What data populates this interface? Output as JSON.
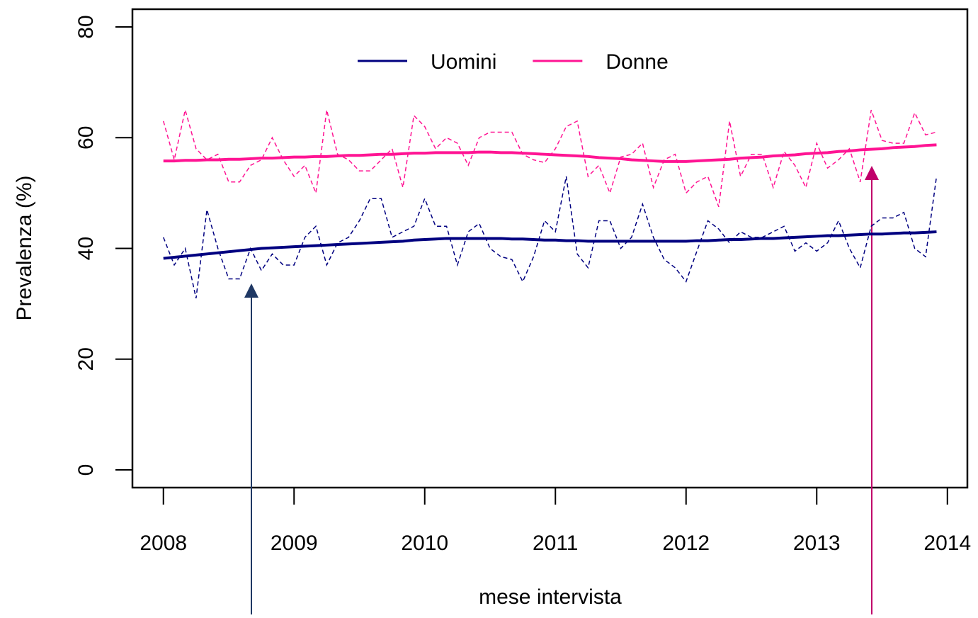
{
  "chart_data": {
    "type": "line",
    "xlabel": "mese intervista",
    "ylabel": "Prevalenza (%)",
    "x": [
      2008,
      2008.083,
      2008.167,
      2008.25,
      2008.333,
      2008.417,
      2008.5,
      2008.583,
      2008.667,
      2008.75,
      2008.833,
      2008.917,
      2009,
      2009.083,
      2009.167,
      2009.25,
      2009.333,
      2009.417,
      2009.5,
      2009.583,
      2009.667,
      2009.75,
      2009.833,
      2009.917,
      2010,
      2010.083,
      2010.167,
      2010.25,
      2010.333,
      2010.417,
      2010.5,
      2010.583,
      2010.667,
      2010.75,
      2010.833,
      2010.917,
      2011,
      2011.083,
      2011.167,
      2011.25,
      2011.333,
      2011.417,
      2011.5,
      2011.583,
      2011.667,
      2011.75,
      2011.833,
      2011.917,
      2012,
      2012.083,
      2012.167,
      2012.25,
      2012.333,
      2012.417,
      2012.5,
      2012.583,
      2012.667,
      2012.75,
      2012.833,
      2012.917,
      2013,
      2013.083,
      2013.167,
      2013.25,
      2013.333,
      2013.417,
      2013.5,
      2013.583,
      2013.667,
      2013.75,
      2013.833,
      2013.917
    ],
    "series": [
      {
        "name": "Uomini",
        "color": "#000080",
        "values": [
          38.2,
          38.4,
          38.6,
          38.8,
          39.0,
          39.2,
          39.4,
          39.6,
          39.8,
          40.0,
          40.1,
          40.2,
          40.3,
          40.4,
          40.5,
          40.6,
          40.7,
          40.8,
          40.9,
          41.0,
          41.1,
          41.2,
          41.3,
          41.5,
          41.6,
          41.7,
          41.8,
          41.8,
          41.8,
          41.8,
          41.8,
          41.8,
          41.7,
          41.7,
          41.6,
          41.5,
          41.5,
          41.4,
          41.4,
          41.3,
          41.3,
          41.3,
          41.3,
          41.3,
          41.3,
          41.3,
          41.3,
          41.3,
          41.3,
          41.4,
          41.4,
          41.5,
          41.6,
          41.6,
          41.7,
          41.8,
          41.8,
          41.9,
          42.0,
          42.1,
          42.2,
          42.3,
          42.3,
          42.4,
          42.5,
          42.6,
          42.6,
          42.7,
          42.8,
          42.8,
          42.9,
          43.0
        ],
        "monthly": [
          42,
          37,
          40,
          31,
          47,
          40,
          34.5,
          34.5,
          40,
          36,
          39,
          37,
          37,
          42,
          44,
          37,
          41,
          42,
          45,
          49,
          49,
          42,
          43,
          44,
          49,
          44,
          44,
          37,
          43,
          44.5,
          40,
          38.5,
          38,
          34,
          38.5,
          45,
          43,
          53,
          39,
          36.5,
          45,
          45,
          40,
          42,
          48,
          42,
          38,
          36.5,
          34,
          39.5,
          45,
          43.5,
          41,
          43,
          42,
          42,
          43,
          44,
          39.5,
          41,
          39.5,
          41,
          45,
          40,
          36.5,
          44,
          45.5,
          45.5,
          46.5,
          40,
          38.5,
          53
        ]
      },
      {
        "name": "Donne",
        "color": "#ff1493",
        "values": [
          55.8,
          55.8,
          55.9,
          55.9,
          56.0,
          56.0,
          56.1,
          56.1,
          56.2,
          56.3,
          56.3,
          56.4,
          56.5,
          56.5,
          56.6,
          56.6,
          56.7,
          56.8,
          56.8,
          56.9,
          57.0,
          57.0,
          57.1,
          57.2,
          57.2,
          57.3,
          57.3,
          57.3,
          57.3,
          57.4,
          57.4,
          57.3,
          57.3,
          57.2,
          57.1,
          57.0,
          56.9,
          56.8,
          56.7,
          56.6,
          56.4,
          56.3,
          56.2,
          56.0,
          55.9,
          55.8,
          55.7,
          55.7,
          55.7,
          55.8,
          55.9,
          56.0,
          56.1,
          56.3,
          56.4,
          56.5,
          56.7,
          56.8,
          56.9,
          57.1,
          57.2,
          57.3,
          57.5,
          57.6,
          57.8,
          57.9,
          58.0,
          58.2,
          58.3,
          58.4,
          58.6,
          58.7
        ],
        "monthly": [
          63,
          56,
          65,
          58,
          56,
          57,
          52,
          52,
          55,
          56,
          60,
          56,
          53,
          55,
          50,
          65,
          57,
          56,
          54,
          54,
          56,
          58,
          51,
          64,
          62,
          58,
          60,
          59,
          55,
          60,
          61,
          61,
          61,
          57,
          56,
          55.5,
          58,
          62,
          63,
          53,
          55,
          50,
          56.5,
          57,
          59,
          51,
          56,
          57,
          50,
          52,
          53,
          47.5,
          63,
          53,
          57,
          57,
          51,
          57.5,
          55,
          51,
          59,
          54.5,
          56,
          58,
          52,
          65,
          59.5,
          59,
          59,
          64.5,
          60.5,
          61
        ]
      }
    ],
    "xlim": [
      2007.763,
      2014.153
    ],
    "xticks": [
      2008,
      2009,
      2010,
      2011,
      2012,
      2013,
      2014
    ],
    "ylim": [
      -3.2,
      83.2
    ],
    "yticks": [
      0,
      20,
      40,
      60,
      80
    ],
    "legend": "top"
  }
}
